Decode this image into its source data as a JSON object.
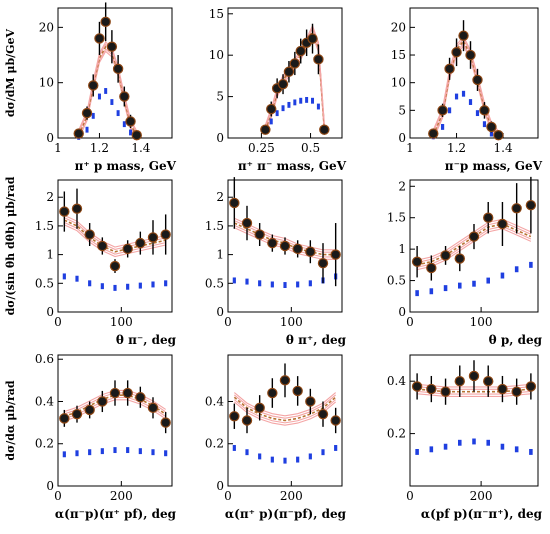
{
  "colors": {
    "data_points": "#1a1a1a",
    "point_fill": "#8B4513",
    "model_band": "#f4a6a6",
    "model_line": "#b87333",
    "blue_bars": "#1f3fe0"
  },
  "row_ylabels": [
    "dσ/dM μb/GeV",
    "dσ/(sin θh dθh) μb/rad",
    "dσ/dα μb/rad"
  ],
  "chart_data": [
    {
      "type": "scatter",
      "xlabel": "π⁺ p mass, GeV",
      "ylabel": "dσ/dM μb/GeV",
      "xlim": [
        1.0,
        1.55
      ],
      "ylim": [
        0,
        23.5
      ],
      "xticks": [
        1,
        1.2,
        1.4
      ],
      "xticklabels": [
        "1",
        "1.2",
        "1.4"
      ],
      "yticks": [
        0,
        10,
        20
      ],
      "yticklabels": [
        "0",
        "10",
        "20"
      ],
      "x": [
        1.1,
        1.14,
        1.17,
        1.2,
        1.23,
        1.26,
        1.29,
        1.32,
        1.35,
        1.38
      ],
      "y": [
        0.8,
        4.5,
        9.5,
        18.0,
        21.0,
        16.5,
        12.5,
        7.5,
        3.0,
        0.5
      ],
      "yerr": [
        0.5,
        1.2,
        2.0,
        3.0,
        3.5,
        3.0,
        2.5,
        1.8,
        1.2,
        0.5
      ],
      "model": [
        0.6,
        4.0,
        9.5,
        14.5,
        16.5,
        15.5,
        12.0,
        7.0,
        2.5,
        0.4
      ],
      "blue": [
        0.2,
        1.5,
        4.0,
        7.5,
        8.5,
        6.5,
        4.5,
        2.5,
        1.0,
        0.2
      ]
    },
    {
      "type": "scatter",
      "xlabel": "π⁺ π⁻ mass, GeV",
      "ylabel": "",
      "xlim": [
        0.08,
        0.66
      ],
      "ylim": [
        0,
        15.7
      ],
      "xticks": [
        0.25,
        0.5
      ],
      "xticklabels": [
        "0.25",
        "0.5"
      ],
      "yticks": [
        0,
        5,
        10,
        15
      ],
      "yticklabels": [
        "0",
        "5",
        "10",
        "15"
      ],
      "x": [
        0.27,
        0.3,
        0.33,
        0.36,
        0.39,
        0.42,
        0.45,
        0.48,
        0.51,
        0.54,
        0.57
      ],
      "y": [
        1.0,
        3.5,
        6.0,
        6.5,
        8.0,
        9.0,
        10.5,
        11.5,
        12.0,
        9.5,
        1.0
      ],
      "yerr": [
        0.5,
        0.9,
        1.2,
        1.2,
        1.3,
        1.4,
        1.5,
        1.6,
        1.8,
        1.8,
        0.6
      ],
      "model": [
        1.0,
        3.0,
        5.5,
        7.0,
        8.0,
        9.0,
        10.0,
        11.5,
        13.0,
        11.0,
        1.2
      ],
      "blue": [
        0.8,
        2.0,
        3.0,
        3.6,
        4.0,
        4.3,
        4.5,
        4.6,
        4.5,
        3.8,
        0.8
      ]
    },
    {
      "type": "scatter",
      "xlabel": "π⁻p mass, GeV",
      "ylabel": "",
      "xlim": [
        1.0,
        1.55
      ],
      "ylim": [
        0,
        23.5
      ],
      "xticks": [
        1,
        1.2,
        1.4
      ],
      "xticklabels": [
        "1",
        "1.2",
        "1.4"
      ],
      "yticks": [
        0,
        5,
        10,
        15,
        20
      ],
      "yticklabels": [
        "0",
        "5",
        "10",
        "15",
        "20"
      ],
      "x": [
        1.1,
        1.14,
        1.17,
        1.2,
        1.23,
        1.26,
        1.29,
        1.32,
        1.35,
        1.38
      ],
      "y": [
        0.8,
        5.0,
        12.5,
        15.5,
        18.5,
        15.0,
        10.5,
        5.0,
        2.0,
        0.5
      ],
      "yerr": [
        0.5,
        1.2,
        2.0,
        2.5,
        2.8,
        2.5,
        2.0,
        1.5,
        1.0,
        0.5
      ],
      "model": [
        0.6,
        4.5,
        11.5,
        16.0,
        17.5,
        15.0,
        10.5,
        5.5,
        2.0,
        0.4
      ],
      "blue": [
        0.3,
        2.0,
        5.0,
        7.5,
        8.0,
        6.5,
        4.5,
        2.5,
        0.8,
        0.2
      ]
    },
    {
      "type": "scatter",
      "xlabel": "θ π⁻, deg",
      "ylabel": "dσ/(sin θh dθh) μb/rad",
      "xlim": [
        0,
        180
      ],
      "ylim": [
        0,
        2.3
      ],
      "xticks": [
        0,
        100
      ],
      "xticklabels": [
        "0",
        "100"
      ],
      "yticks": [
        0,
        0.5,
        1,
        1.5,
        2
      ],
      "yticklabels": [
        "0",
        "0.5",
        "1",
        "1.5",
        "2"
      ],
      "x": [
        10,
        30,
        50,
        70,
        90,
        110,
        130,
        150,
        170
      ],
      "y": [
        1.75,
        1.8,
        1.35,
        1.15,
        0.8,
        1.1,
        1.2,
        1.3,
        1.35
      ],
      "yerr": [
        0.35,
        0.35,
        0.2,
        0.15,
        0.12,
        0.15,
        0.2,
        0.3,
        0.35
      ],
      "model": [
        1.6,
        1.5,
        1.3,
        1.15,
        1.05,
        1.1,
        1.15,
        1.2,
        1.25
      ],
      "blue": [
        0.62,
        0.58,
        0.5,
        0.45,
        0.42,
        0.44,
        0.46,
        0.48,
        0.5
      ]
    },
    {
      "type": "scatter",
      "xlabel": "θ π⁺, deg",
      "ylabel": "",
      "xlim": [
        0,
        180
      ],
      "ylim": [
        0,
        2.3
      ],
      "xticks": [
        0,
        100
      ],
      "xticklabels": [
        "0",
        "100"
      ],
      "yticks": [
        0,
        0.5,
        1,
        1.5,
        2
      ],
      "yticklabels": [
        "0",
        "0.5",
        "1",
        "1.5",
        "2"
      ],
      "x": [
        10,
        30,
        50,
        70,
        90,
        110,
        130,
        150,
        170
      ],
      "y": [
        1.9,
        1.55,
        1.35,
        1.2,
        1.15,
        1.1,
        1.05,
        0.85,
        1.0
      ],
      "yerr": [
        0.45,
        0.3,
        0.2,
        0.15,
        0.15,
        0.15,
        0.2,
        0.35,
        0.55
      ],
      "model": [
        1.55,
        1.45,
        1.35,
        1.25,
        1.2,
        1.1,
        1.05,
        1.0,
        1.0
      ],
      "blue": [
        0.55,
        0.53,
        0.5,
        0.48,
        0.47,
        0.48,
        0.5,
        0.55,
        0.62
      ]
    },
    {
      "type": "scatter",
      "xlabel": "θ p, deg",
      "ylabel": "",
      "xlim": [
        0,
        180
      ],
      "ylim": [
        0,
        2.1
      ],
      "xticks": [
        0,
        100
      ],
      "xticklabels": [
        "0",
        "100"
      ],
      "yticks": [
        0,
        0.5,
        1,
        1.5,
        2
      ],
      "yticklabels": [
        "0",
        "0.5",
        "1",
        "1.5",
        "2"
      ],
      "x": [
        10,
        30,
        50,
        70,
        90,
        110,
        130,
        150,
        170
      ],
      "y": [
        0.8,
        0.7,
        0.9,
        0.85,
        1.2,
        1.5,
        1.4,
        1.65,
        1.7
      ],
      "yerr": [
        0.25,
        0.2,
        0.15,
        0.2,
        0.2,
        0.25,
        0.35,
        0.4,
        0.45
      ],
      "model": [
        0.75,
        0.8,
        0.9,
        1.05,
        1.2,
        1.35,
        1.4,
        1.3,
        1.2
      ],
      "blue": [
        0.3,
        0.33,
        0.38,
        0.42,
        0.45,
        0.5,
        0.58,
        0.68,
        0.75
      ]
    },
    {
      "type": "scatter",
      "xlabel": "α(π⁻p)(π⁺ pf), deg",
      "ylabel": "dσ/dα μb/rad",
      "xlim": [
        0,
        360
      ],
      "ylim": [
        0,
        0.62
      ],
      "xticks": [
        0,
        200
      ],
      "xticklabels": [
        "0",
        "200"
      ],
      "yticks": [
        0,
        0.2,
        0.4,
        0.6
      ],
      "yticklabels": [
        "0",
        "0.2",
        "0.4",
        "0.6"
      ],
      "x": [
        20,
        60,
        100,
        140,
        180,
        220,
        260,
        300,
        340
      ],
      "y": [
        0.32,
        0.34,
        0.36,
        0.4,
        0.44,
        0.44,
        0.42,
        0.37,
        0.3
      ],
      "yerr": [
        0.04,
        0.04,
        0.04,
        0.05,
        0.06,
        0.06,
        0.05,
        0.05,
        0.05
      ],
      "model": [
        0.33,
        0.35,
        0.38,
        0.41,
        0.43,
        0.43,
        0.41,
        0.38,
        0.34
      ],
      "blue": [
        0.15,
        0.155,
        0.16,
        0.165,
        0.17,
        0.17,
        0.165,
        0.16,
        0.155
      ]
    },
    {
      "type": "scatter",
      "xlabel": "α(π⁺ p)(π⁻pf), deg",
      "ylabel": "",
      "xlim": [
        0,
        360
      ],
      "ylim": [
        0,
        0.62
      ],
      "xticks": [
        0,
        200
      ],
      "xticklabels": [
        "0",
        "200"
      ],
      "yticks": [
        0,
        0.2,
        0.4
      ],
      "yticklabels": [
        "0",
        "0.2",
        "0.4"
      ],
      "x": [
        20,
        60,
        100,
        140,
        180,
        220,
        260,
        300,
        340
      ],
      "y": [
        0.33,
        0.31,
        0.37,
        0.44,
        0.5,
        0.45,
        0.4,
        0.34,
        0.31
      ],
      "yerr": [
        0.06,
        0.06,
        0.06,
        0.07,
        0.08,
        0.07,
        0.06,
        0.06,
        0.06
      ],
      "model": [
        0.42,
        0.37,
        0.34,
        0.32,
        0.31,
        0.32,
        0.34,
        0.37,
        0.42
      ],
      "blue": [
        0.18,
        0.16,
        0.14,
        0.125,
        0.12,
        0.125,
        0.14,
        0.16,
        0.18
      ]
    },
    {
      "type": "scatter",
      "xlabel": "α(pf p)(π⁻π⁺), deg",
      "ylabel": "",
      "xlim": [
        0,
        360
      ],
      "ylim": [
        0,
        0.5
      ],
      "xticks": [
        0,
        200
      ],
      "xticklabels": [
        "0",
        "200"
      ],
      "yticks": [
        0.2,
        0.4
      ],
      "yticklabels": [
        "0.2",
        "0.4"
      ],
      "x": [
        20,
        60,
        100,
        140,
        180,
        220,
        260,
        300,
        340
      ],
      "y": [
        0.38,
        0.37,
        0.36,
        0.4,
        0.42,
        0.4,
        0.37,
        0.36,
        0.38
      ],
      "yerr": [
        0.05,
        0.05,
        0.05,
        0.06,
        0.06,
        0.06,
        0.05,
        0.05,
        0.05
      ],
      "model": [
        0.37,
        0.365,
        0.36,
        0.36,
        0.36,
        0.36,
        0.36,
        0.365,
        0.37
      ],
      "blue": [
        0.13,
        0.14,
        0.15,
        0.165,
        0.17,
        0.165,
        0.15,
        0.14,
        0.13
      ]
    }
  ]
}
